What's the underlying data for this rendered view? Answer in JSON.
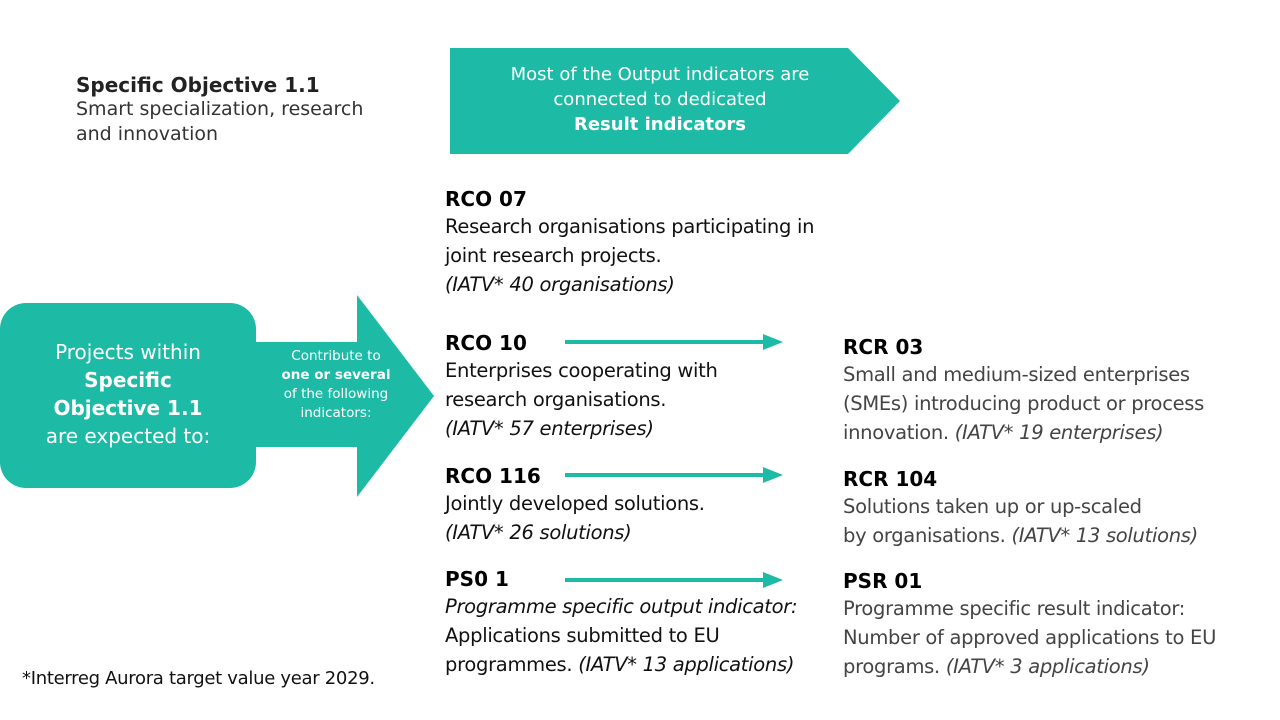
{
  "objective": {
    "title": "Specific Objective 1.1",
    "subtitle": "Smart specialization, research and innovation"
  },
  "banner": {
    "line1": "Most of the Output indicators are",
    "line2": "connected to dedicated",
    "line3": "Result indicators"
  },
  "projects_box": {
    "line1": "Projects within",
    "line2": "Specific",
    "line3": "Objective 1.1",
    "line4": "are expected to:"
  },
  "contribute_arrow": {
    "part1": "Contribute to",
    "bold": "one or several",
    "part2": "of the following indicators:"
  },
  "output_indicators": [
    {
      "code": "RCO 07",
      "desc_lines": [
        "Research organisations participating in",
        "joint research projects."
      ],
      "target": "(IATV* 40 organisations)"
    },
    {
      "code": "RCO 10",
      "desc_lines": [
        "Enterprises cooperating with",
        "research organisations."
      ],
      "target": "(IATV* 57 enterprises)"
    },
    {
      "code": "RCO 116",
      "desc_lines": [
        "Jointly developed solutions."
      ],
      "target": "(IATV* 26 solutions)"
    },
    {
      "code": "PS0 1",
      "italic_line": "Programme specific output indicator:",
      "desc_lines": [
        "Applications submitted to EU"
      ],
      "last_line": "programmes.",
      "target": "(IATV* 13 applications)"
    }
  ],
  "result_indicators": [
    {
      "code": "RCR 03",
      "desc_lines": [
        "Small and medium-sized enterprises",
        "(SMEs) introducing product or process"
      ],
      "last_line": "innovation.",
      "target": "(IATV* 19 enterprises)"
    },
    {
      "code": "RCR 104",
      "desc_lines": [
        "Solutions taken up or up-scaled"
      ],
      "last_line": "by organisations.",
      "target": "(IATV* 13 solutions)"
    },
    {
      "code": "PSR 01",
      "desc_lines": [
        "Programme specific result indicator:",
        "Number of approved applications to EU"
      ],
      "last_line": "programs.",
      "target": "(IATV* 3 applications)"
    }
  ],
  "footnote": "*Interreg Aurora target value year 2029.",
  "colors": {
    "accent": "#1dbba6"
  }
}
